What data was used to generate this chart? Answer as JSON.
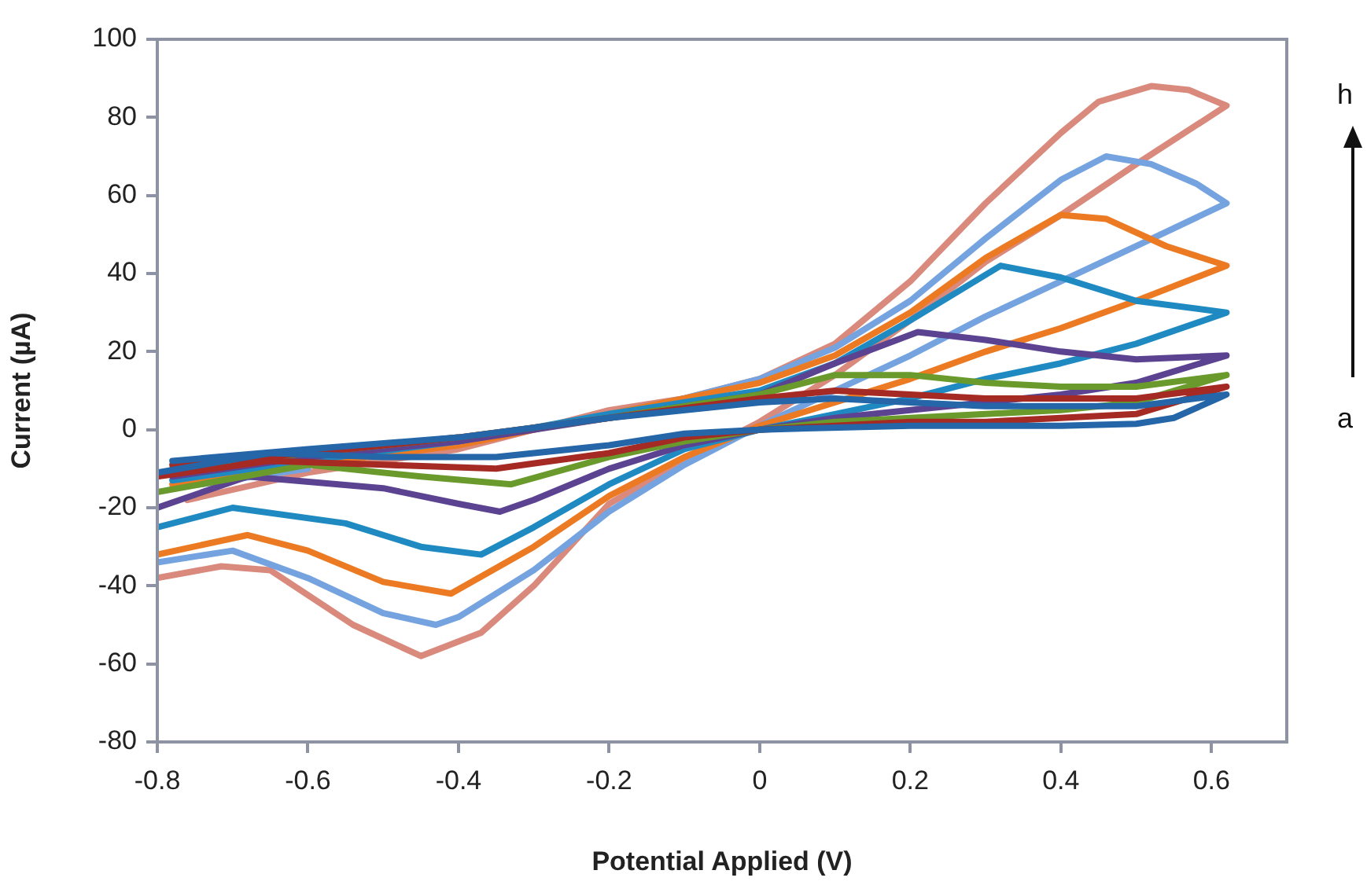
{
  "chart_data": {
    "type": "line",
    "xlabel": "Potential Applied (V)",
    "ylabel": "Current (µA)",
    "xlim": [
      -0.8,
      0.7
    ],
    "ylim": [
      -80,
      100
    ],
    "xticks": [
      -0.8,
      -0.6,
      -0.4,
      -0.2,
      0,
      0.2,
      0.4,
      0.6
    ],
    "yticks": [
      -80,
      -60,
      -40,
      -20,
      0,
      20,
      40,
      60,
      80,
      100
    ],
    "marker": "none",
    "line_style": "solid",
    "legend": false,
    "annotations": [
      "h",
      "a"
    ],
    "series": [
      {
        "color": "#2466a8",
        "x": [
          -0.78,
          -0.6,
          -0.4,
          -0.2,
          0,
          0.1,
          0.2,
          0.3,
          0.4,
          0.5,
          0.62,
          0.55,
          0.5,
          0.4,
          0.2,
          0,
          -0.1,
          -0.2,
          -0.35,
          -0.5,
          -0.65,
          -0.8
        ],
        "values": [
          -8,
          -5,
          -2,
          3,
          7,
          8,
          7,
          6,
          6,
          6,
          9,
          3,
          1.5,
          1,
          1,
          0,
          -1,
          -4,
          -7,
          -7,
          -6,
          -11
        ]
      },
      {
        "color": "#a52a24",
        "x": [
          -0.78,
          -0.6,
          -0.4,
          -0.2,
          0,
          0.1,
          0.2,
          0.3,
          0.4,
          0.5,
          0.62,
          0.5,
          0.4,
          0.3,
          0.2,
          0.1,
          0,
          -0.1,
          -0.2,
          -0.35,
          -0.5,
          -0.65,
          -0.8
        ],
        "values": [
          -9,
          -6,
          -2,
          3,
          8,
          10,
          9,
          8,
          8,
          8,
          11,
          4,
          3,
          2,
          2,
          1,
          0,
          -2,
          -6,
          -10,
          -9,
          -8,
          -12
        ]
      },
      {
        "color": "#6a9a2c",
        "x": [
          -0.78,
          -0.6,
          -0.4,
          -0.2,
          0,
          0.1,
          0.2,
          0.3,
          0.4,
          0.5,
          0.62,
          0.5,
          0.4,
          0.3,
          0.2,
          0.1,
          0,
          -0.1,
          -0.2,
          -0.33,
          -0.45,
          -0.6,
          -0.8
        ],
        "values": [
          -10,
          -6,
          -2,
          3,
          9,
          14,
          14,
          12,
          11,
          11,
          14,
          7,
          5,
          4,
          3,
          2,
          0,
          -3,
          -7,
          -14,
          -12,
          -9,
          -16
        ]
      },
      {
        "color": "#5b4391",
        "x": [
          -0.78,
          -0.6,
          -0.4,
          -0.2,
          0,
          0.1,
          0.21,
          0.3,
          0.4,
          0.5,
          0.62,
          0.5,
          0.4,
          0.3,
          0.2,
          0.1,
          0,
          -0.1,
          -0.2,
          -0.3,
          -0.345,
          -0.4,
          -0.5,
          -0.68,
          -0.8
        ],
        "values": [
          -12,
          -7,
          -3,
          3,
          9,
          17,
          25,
          23,
          20,
          18,
          19,
          12,
          9,
          7,
          5,
          3,
          0,
          -4,
          -10,
          -18,
          -21,
          -19,
          -15,
          -12,
          -20
        ]
      },
      {
        "color": "#1f8ac2",
        "x": [
          -0.78,
          -0.6,
          -0.4,
          -0.2,
          0,
          0.1,
          0.2,
          0.32,
          0.4,
          0.5,
          0.62,
          0.5,
          0.4,
          0.3,
          0.2,
          0.1,
          0,
          -0.1,
          -0.2,
          -0.3,
          -0.37,
          -0.45,
          -0.55,
          -0.7,
          -0.8
        ],
        "values": [
          -13,
          -8,
          -3,
          4,
          10,
          17,
          28,
          42,
          39,
          33,
          30,
          22,
          17,
          13,
          8,
          4,
          0,
          -5,
          -14,
          -25,
          -32,
          -30,
          -24,
          -20,
          -25
        ]
      },
      {
        "color": "#ec7a22",
        "x": [
          -0.78,
          -0.6,
          -0.4,
          -0.2,
          -0.1,
          0,
          0.1,
          0.2,
          0.3,
          0.4,
          0.46,
          0.54,
          0.62,
          0.5,
          0.4,
          0.3,
          0.2,
          0.1,
          0,
          -0.1,
          -0.2,
          -0.3,
          -0.41,
          -0.5,
          -0.6,
          -0.68,
          -0.8
        ],
        "values": [
          -14,
          -9,
          -4,
          4,
          8,
          12,
          19,
          30,
          44,
          55,
          54,
          47,
          42,
          33,
          26,
          20,
          13,
          7,
          1,
          -7,
          -17,
          -30,
          -42,
          -39,
          -31,
          -27,
          -32
        ]
      },
      {
        "color": "#74a3df",
        "x": [
          -0.78,
          -0.6,
          -0.4,
          -0.2,
          -0.1,
          0,
          0.1,
          0.2,
          0.3,
          0.4,
          0.46,
          0.52,
          0.58,
          0.62,
          0.5,
          0.4,
          0.3,
          0.2,
          0.1,
          0,
          -0.1,
          -0.2,
          -0.3,
          -0.4,
          -0.43,
          -0.5,
          -0.6,
          -0.7,
          -0.8
        ],
        "values": [
          -15,
          -10,
          null,
          4,
          8,
          13,
          21,
          33,
          49,
          64,
          70,
          68,
          63,
          58,
          47,
          38,
          29,
          19,
          10,
          1,
          -9,
          -21,
          -36,
          -48,
          -50,
          -47,
          -38,
          -31,
          -34
        ]
      },
      {
        "color": "#d98a7c",
        "x": [
          -0.76,
          -0.6,
          -0.4,
          -0.2,
          -0.1,
          0,
          0.1,
          0.2,
          0.3,
          0.4,
          0.45,
          0.52,
          0.57,
          0.62,
          0.5,
          0.4,
          0.3,
          0.2,
          0.1,
          0,
          -0.1,
          -0.2,
          -0.3,
          -0.37,
          -0.45,
          -0.54,
          -0.65,
          -0.715,
          -0.8
        ],
        "values": [
          -18,
          -11,
          -5,
          5,
          8,
          13,
          22,
          38,
          58,
          76,
          84,
          88,
          87,
          83,
          68,
          55,
          43,
          28,
          14,
          2,
          -8,
          -19,
          -40,
          -52,
          -58,
          -50,
          -36,
          -35,
          -38
        ]
      }
    ]
  }
}
